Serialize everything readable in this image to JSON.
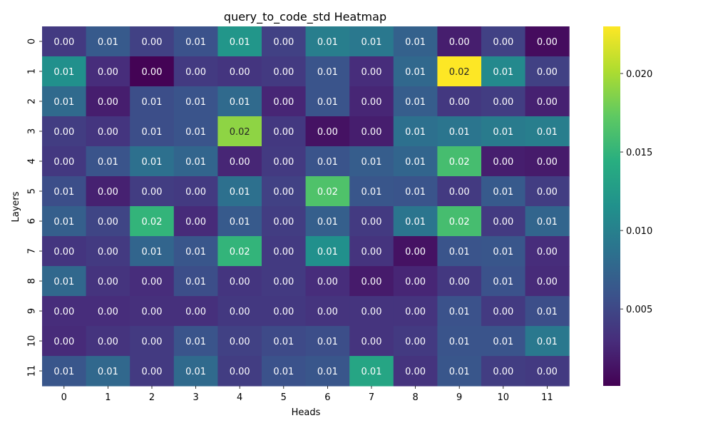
{
  "chart_data": {
    "type": "heatmap",
    "title": "query_to_code_std Heatmap",
    "xlabel": "Heads",
    "ylabel": "Layers",
    "x_categories": [
      "0",
      "1",
      "2",
      "3",
      "4",
      "5",
      "6",
      "7",
      "8",
      "9",
      "10",
      "11"
    ],
    "y_categories": [
      "0",
      "1",
      "2",
      "3",
      "4",
      "5",
      "6",
      "7",
      "8",
      "9",
      "10",
      "11"
    ],
    "colormap": "viridis",
    "color_range": [
      0.0001,
      0.023
    ],
    "colorbar_ticks": [
      {
        "value": 0.005,
        "label": "0.005"
      },
      {
        "value": 0.01,
        "label": "0.010"
      },
      {
        "value": 0.015,
        "label": "0.015"
      },
      {
        "value": 0.02,
        "label": "0.020"
      }
    ],
    "values": [
      [
        0.004,
        0.0065,
        0.0045,
        0.0058,
        0.012,
        0.0045,
        0.0098,
        0.0092,
        0.0072,
        0.002,
        0.0045,
        0.0008
      ],
      [
        0.0115,
        0.003,
        0.0002,
        0.004,
        0.0036,
        0.004,
        0.006,
        0.003,
        0.0078,
        0.023,
        0.0108,
        0.0045
      ],
      [
        0.008,
        0.002,
        0.0055,
        0.006,
        0.008,
        0.0025,
        0.006,
        0.0025,
        0.0068,
        0.0038,
        0.0042,
        0.0022
      ],
      [
        0.0042,
        0.0036,
        0.0055,
        0.006,
        0.019,
        0.0038,
        0.0012,
        0.002,
        0.0085,
        0.009,
        0.0095,
        0.0098
      ],
      [
        0.0038,
        0.006,
        0.0085,
        0.0075,
        0.0025,
        0.004,
        0.006,
        0.0068,
        0.0075,
        0.016,
        0.002,
        0.0018
      ],
      [
        0.0055,
        0.0022,
        0.0042,
        0.004,
        0.0085,
        0.0045,
        0.0165,
        0.0062,
        0.006,
        0.004,
        0.0065,
        0.0042
      ],
      [
        0.007,
        0.0048,
        0.015,
        0.0028,
        0.0065,
        0.0042,
        0.007,
        0.004,
        0.009,
        0.016,
        0.004,
        0.0075
      ],
      [
        0.0036,
        0.004,
        0.0075,
        0.0062,
        0.015,
        0.004,
        0.0115,
        0.0035,
        0.0012,
        0.006,
        0.0062,
        0.003
      ],
      [
        0.0078,
        0.0035,
        0.003,
        0.0055,
        0.0036,
        0.004,
        0.003,
        0.0018,
        0.0025,
        0.0038,
        0.0058,
        0.0028
      ],
      [
        0.003,
        0.003,
        0.0032,
        0.0032,
        0.0038,
        0.0038,
        0.0035,
        0.0035,
        0.0035,
        0.0058,
        0.004,
        0.0055
      ],
      [
        0.0028,
        0.0035,
        0.004,
        0.006,
        0.0045,
        0.0052,
        0.0055,
        0.0035,
        0.004,
        0.006,
        0.006,
        0.0092
      ],
      [
        0.0062,
        0.0078,
        0.004,
        0.008,
        0.0042,
        0.0058,
        0.0062,
        0.0135,
        0.0035,
        0.0062,
        0.0042,
        0.004
      ]
    ],
    "cell_labels": [
      [
        "0.00",
        "0.01",
        "0.00",
        "0.01",
        "0.01",
        "0.00",
        "0.01",
        "0.01",
        "0.01",
        "0.00",
        "0.00",
        "0.00"
      ],
      [
        "0.01",
        "0.00",
        "0.00",
        "0.00",
        "0.00",
        "0.00",
        "0.01",
        "0.00",
        "0.01",
        "0.02",
        "0.01",
        "0.00"
      ],
      [
        "0.01",
        "0.00",
        "0.01",
        "0.01",
        "0.01",
        "0.00",
        "0.01",
        "0.00",
        "0.01",
        "0.00",
        "0.00",
        "0.00"
      ],
      [
        "0.00",
        "0.00",
        "0.01",
        "0.01",
        "0.02",
        "0.00",
        "0.00",
        "0.00",
        "0.01",
        "0.01",
        "0.01",
        "0.01"
      ],
      [
        "0.00",
        "0.01",
        "0.01",
        "0.01",
        "0.00",
        "0.00",
        "0.01",
        "0.01",
        "0.01",
        "0.02",
        "0.00",
        "0.00"
      ],
      [
        "0.01",
        "0.00",
        "0.00",
        "0.00",
        "0.01",
        "0.00",
        "0.02",
        "0.01",
        "0.01",
        "0.00",
        "0.01",
        "0.00"
      ],
      [
        "0.01",
        "0.00",
        "0.02",
        "0.00",
        "0.01",
        "0.00",
        "0.01",
        "0.00",
        "0.01",
        "0.02",
        "0.00",
        "0.01"
      ],
      [
        "0.00",
        "0.00",
        "0.01",
        "0.01",
        "0.02",
        "0.00",
        "0.01",
        "0.00",
        "0.00",
        "0.01",
        "0.01",
        "0.00"
      ],
      [
        "0.01",
        "0.00",
        "0.00",
        "0.01",
        "0.00",
        "0.00",
        "0.00",
        "0.00",
        "0.00",
        "0.00",
        "0.01",
        "0.00"
      ],
      [
        "0.00",
        "0.00",
        "0.00",
        "0.00",
        "0.00",
        "0.00",
        "0.00",
        "0.00",
        "0.00",
        "0.01",
        "0.00",
        "0.01"
      ],
      [
        "0.00",
        "0.00",
        "0.00",
        "0.01",
        "0.00",
        "0.01",
        "0.01",
        "0.00",
        "0.00",
        "0.01",
        "0.01",
        "0.01"
      ],
      [
        "0.01",
        "0.01",
        "0.00",
        "0.01",
        "0.00",
        "0.01",
        "0.01",
        "0.01",
        "0.00",
        "0.01",
        "0.00",
        "0.00"
      ]
    ]
  }
}
